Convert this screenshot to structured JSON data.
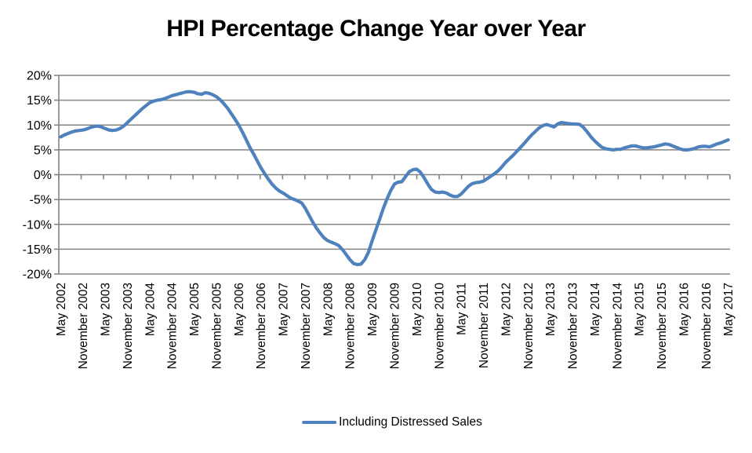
{
  "title": "HPI Percentage Change Year over Year",
  "legend": {
    "label": "Including Distressed Sales"
  },
  "colors": {
    "line": "#4F81BD",
    "grid": "#848484",
    "axis": "#848484",
    "text": "#000000",
    "background": "#FFFFFF"
  },
  "chart_data": {
    "type": "line",
    "title": "HPI Percentage Change Year over Year",
    "xlabel": "",
    "ylabel": "",
    "ylim": [
      -20,
      20
    ],
    "y_tick_step": 5,
    "grid": true,
    "legend_position": "bottom",
    "y_tick_labels": [
      "20%",
      "15%",
      "10%",
      "5%",
      "0%",
      "-5%",
      "-10%",
      "-15%",
      "-20%"
    ],
    "x_tick_every": 6,
    "x_tick_labels": [
      "May 2002",
      "November 2002",
      "May 2003",
      "November 2003",
      "May 2004",
      "November 2004",
      "May 2005",
      "November 2005",
      "May 2006",
      "November 2006",
      "May 2007",
      "November 2007",
      "May 2008",
      "November 2008",
      "May 2009",
      "November 2009",
      "May 2010",
      "November 2010",
      "May 2011",
      "November 2011",
      "May 2012",
      "November 2012",
      "May 2013",
      "November 2013",
      "May 2014",
      "November 2014",
      "May 2015",
      "November 2015",
      "May 2016",
      "November 2016",
      "May 2017"
    ],
    "x_start": "May 2002",
    "x_end": "May 2017",
    "x_frequency": "monthly",
    "series": [
      {
        "name": "Including Distressed Sales",
        "color": "#4F81BD",
        "values": [
          7.6,
          8.0,
          8.3,
          8.6,
          8.8,
          8.9,
          9.0,
          9.2,
          9.5,
          9.7,
          9.8,
          9.6,
          9.3,
          9.0,
          8.9,
          9.0,
          9.3,
          9.8,
          10.5,
          11.2,
          11.9,
          12.6,
          13.3,
          13.9,
          14.5,
          14.8,
          15.0,
          15.1,
          15.3,
          15.6,
          15.9,
          16.1,
          16.3,
          16.5,
          16.7,
          16.7,
          16.6,
          16.3,
          16.2,
          16.5,
          16.4,
          16.1,
          15.7,
          15.1,
          14.3,
          13.4,
          12.3,
          11.2,
          10.0,
          8.6,
          7.1,
          5.5,
          4.2,
          2.8,
          1.4,
          0.2,
          -0.9,
          -1.9,
          -2.7,
          -3.3,
          -3.7,
          -4.2,
          -4.7,
          -5.0,
          -5.3,
          -5.7,
          -6.8,
          -8.2,
          -9.6,
          -10.8,
          -11.8,
          -12.7,
          -13.3,
          -13.6,
          -13.9,
          -14.3,
          -15.1,
          -16.1,
          -17.1,
          -17.9,
          -18.1,
          -18.0,
          -17.1,
          -15.6,
          -13.3,
          -11.1,
          -9.0,
          -6.8,
          -4.9,
          -3.2,
          -1.9,
          -1.5,
          -1.4,
          -0.4,
          0.6,
          1.0,
          1.1,
          0.5,
          -0.6,
          -1.9,
          -3.0,
          -3.5,
          -3.6,
          -3.5,
          -3.7,
          -4.1,
          -4.4,
          -4.4,
          -3.9,
          -3.1,
          -2.3,
          -1.8,
          -1.6,
          -1.5,
          -1.3,
          -0.8,
          -0.3,
          0.2,
          0.8,
          1.6,
          2.5,
          3.2,
          3.9,
          4.7,
          5.5,
          6.3,
          7.2,
          8.0,
          8.7,
          9.4,
          9.9,
          10.1,
          9.9,
          9.6,
          10.2,
          10.5,
          10.4,
          10.3,
          10.2,
          10.2,
          10.1,
          9.5,
          8.6,
          7.6,
          6.8,
          6.1,
          5.5,
          5.2,
          5.1,
          5.0,
          5.1,
          5.1,
          5.4,
          5.6,
          5.8,
          5.8,
          5.6,
          5.4,
          5.4,
          5.5,
          5.6,
          5.8,
          6.0,
          6.2,
          6.1,
          5.8,
          5.5,
          5.2,
          5.0,
          5.0,
          5.1,
          5.3,
          5.6,
          5.7,
          5.7,
          5.6,
          5.9,
          6.2,
          6.4,
          6.7,
          7.0
        ]
      }
    ]
  }
}
